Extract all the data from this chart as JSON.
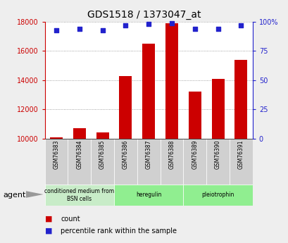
{
  "title": "GDS1518 / 1373047_at",
  "samples": [
    "GSM76383",
    "GSM76384",
    "GSM76385",
    "GSM76386",
    "GSM76387",
    "GSM76388",
    "GSM76389",
    "GSM76390",
    "GSM76391"
  ],
  "counts": [
    10100,
    10700,
    10400,
    14300,
    16500,
    17900,
    13200,
    14100,
    15400
  ],
  "percentiles": [
    93,
    94,
    93,
    97,
    98,
    99,
    94,
    94,
    97
  ],
  "ylim_left": [
    10000,
    18000
  ],
  "ylim_right": [
    0,
    100
  ],
  "yticks_left": [
    10000,
    12000,
    14000,
    16000,
    18000
  ],
  "yticks_right": [
    0,
    25,
    50,
    75,
    100
  ],
  "groups": [
    {
      "label": "conditioned medium from\nBSN cells",
      "start": 0,
      "end": 2,
      "color": "#c8ecc8"
    },
    {
      "label": "heregulin",
      "start": 3,
      "end": 5,
      "color": "#90ee90"
    },
    {
      "label": "pleiotrophin",
      "start": 6,
      "end": 8,
      "color": "#90ee90"
    }
  ],
  "bar_color": "#cc0000",
  "dot_color": "#2222cc",
  "tick_color_left": "#cc0000",
  "tick_color_right": "#2222cc",
  "sample_box_color": "#d0d0d0",
  "plot_bg": "#ffffff",
  "fig_bg": "#eeeeee",
  "agent_label": "agent"
}
